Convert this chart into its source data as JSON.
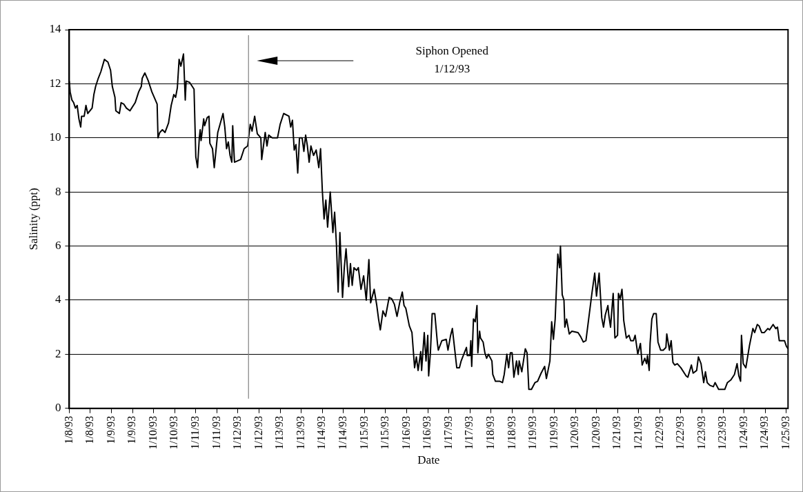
{
  "chart_data": {
    "type": "line",
    "xlabel": "Date",
    "ylabel": "Salinity (ppt)",
    "x": [
      "1993-01-08T00:00",
      "1993-01-08T00:30",
      "1993-01-08T01:30",
      "1993-01-08T02:30",
      "1993-01-08T03:30",
      "1993-01-08T04:30",
      "1993-01-08T05:30",
      "1993-01-08T06:30",
      "1993-01-08T07:00",
      "1993-01-08T08:30",
      "1993-01-08T09:30",
      "1993-01-08T10:30",
      "1993-01-08T13:00",
      "1993-01-08T14:00",
      "1993-01-08T15:00",
      "1993-01-08T16:30",
      "1993-01-08T18:00",
      "1993-01-08T20:00",
      "1993-01-08T22:00",
      "1993-01-08T23:30",
      "1993-01-09T00:30",
      "1993-01-09T02:00",
      "1993-01-09T02:30",
      "1993-01-09T04:30",
      "1993-01-09T05:30",
      "1993-01-09T07:00",
      "1993-01-09T08:30",
      "1993-01-09T10:30",
      "1993-01-09T13:30",
      "1993-01-09T15:30",
      "1993-01-09T17:00",
      "1993-01-09T17:30",
      "1993-01-09T19:00",
      "1993-01-09T21:00",
      "1993-01-09T23:00",
      "1993-01-10T01:00",
      "1993-01-10T02:00",
      "1993-01-10T02:30",
      "1993-01-10T03:30",
      "1993-01-10T05:00",
      "1993-01-10T06:30",
      "1993-01-10T08:30",
      "1993-01-10T10:00",
      "1993-01-10T11:30",
      "1993-01-10T12:30",
      "1993-01-10T13:30",
      "1993-01-10T14:30",
      "1993-01-10T15:30",
      "1993-01-10T17:00",
      "1993-01-10T18:00",
      "1993-01-10T18:30",
      "1993-01-10T20:30",
      "1993-01-10T22:30",
      "1993-01-10T23:00",
      "1993-01-11T00:00",
      "1993-01-11T01:00",
      "1993-01-11T02:00",
      "1993-01-11T02:30",
      "1993-01-11T03:00",
      "1993-01-11T04:30",
      "1993-01-11T05:00",
      "1993-01-11T06:30",
      "1993-01-11T07:30",
      "1993-01-11T08:00",
      "1993-01-11T09:30",
      "1993-01-11T10:30",
      "1993-01-11T12:30",
      "1993-01-11T15:30",
      "1993-01-11T16:30",
      "1993-01-11T17:30",
      "1993-01-11T18:30",
      "1993-01-11T19:30",
      "1993-01-11T20:30",
      "1993-01-11T21:00",
      "1993-01-11T22:00",
      "1993-01-12T01:30",
      "1993-01-12T03:30",
      "1993-01-12T05:30",
      "1993-01-12T07:00",
      "1993-01-12T08:00",
      "1993-01-12T09:30",
      "1993-01-12T11:00",
      "1993-01-12T13:00",
      "1993-01-12T13:30",
      "1993-01-12T14:30",
      "1993-01-12T15:30",
      "1993-01-12T16:30",
      "1993-01-12T17:30",
      "1993-01-12T19:30",
      "1993-01-12T22:30",
      "1993-01-13T00:00",
      "1993-01-13T02:00",
      "1993-01-13T05:00",
      "1993-01-13T06:00",
      "1993-01-13T07:00",
      "1993-01-13T08:00",
      "1993-01-13T09:00",
      "1993-01-13T10:00",
      "1993-01-13T11:00",
      "1993-01-13T12:30",
      "1993-01-13T13:30",
      "1993-01-13T14:30",
      "1993-01-13T15:30",
      "1993-01-13T16:30",
      "1993-01-13T17:30",
      "1993-01-13T19:00",
      "1993-01-13T20:30",
      "1993-01-13T22:00",
      "1993-01-13T23:00",
      "1993-01-14T00:00",
      "1993-01-14T01:00",
      "1993-01-14T02:00",
      "1993-01-14T03:00",
      "1993-01-14T04:30",
      "1993-01-14T06:00",
      "1993-01-14T07:00",
      "1993-01-14T08:00",
      "1993-01-14T09:00",
      "1993-01-14T10:00",
      "1993-01-14T11:30",
      "1993-01-14T12:30",
      "1993-01-14T13:30",
      "1993-01-14T15:00",
      "1993-01-14T16:00",
      "1993-01-14T17:00",
      "1993-01-14T18:00",
      "1993-01-14T19:30",
      "1993-01-14T20:30",
      "1993-01-14T22:00",
      "1993-01-14T23:30",
      "1993-01-15T01:00",
      "1993-01-15T02:30",
      "1993-01-15T03:30",
      "1993-01-15T05:30",
      "1993-01-15T07:00",
      "1993-01-15T08:00",
      "1993-01-15T09:00",
      "1993-01-15T10:30",
      "1993-01-15T12:00",
      "1993-01-15T14:00",
      "1993-01-15T15:30",
      "1993-01-15T17:00",
      "1993-01-15T18:30",
      "1993-01-15T20:00",
      "1993-01-15T21:30",
      "1993-01-15T22:30",
      "1993-01-15T23:30",
      "1993-01-16T01:30",
      "1993-01-16T03:00",
      "1993-01-16T04:30",
      "1993-01-16T05:30",
      "1993-01-16T06:30",
      "1993-01-16T08:00",
      "1993-01-16T08:30",
      "1993-01-16T10:00",
      "1993-01-16T11:00",
      "1993-01-16T12:00",
      "1993-01-16T12:30",
      "1993-01-16T13:30",
      "1993-01-16T14:30",
      "1993-01-16T16:00",
      "1993-01-16T17:30",
      "1993-01-16T18:00",
      "1993-01-16T20:00",
      "1993-01-16T22:30",
      "1993-01-16T23:30",
      "1993-01-17T01:00",
      "1993-01-17T02:00",
      "1993-01-17T04:30",
      "1993-01-17T06:00",
      "1993-01-17T07:00",
      "1993-01-17T10:00",
      "1993-01-17T10:30",
      "1993-01-17T12:00",
      "1993-01-17T12:30",
      "1993-01-17T13:00",
      "1993-01-17T14:00",
      "1993-01-17T15:00",
      "1993-01-17T16:00",
      "1993-01-17T16:30",
      "1993-01-17T17:30",
      "1993-01-17T18:00",
      "1993-01-17T19:30",
      "1993-01-17T20:30",
      "1993-01-17T21:30",
      "1993-01-17T22:30",
      "1993-01-18T00:30",
      "1993-01-18T01:00",
      "1993-01-18T02:30",
      "1993-01-18T05:00",
      "1993-01-18T06:30",
      "1993-01-18T07:30",
      "1993-01-18T09:00",
      "1993-01-18T10:00",
      "1993-01-18T11:00",
      "1993-01-18T12:00",
      "1993-01-18T13:00",
      "1993-01-18T14:30",
      "1993-01-18T15:30",
      "1993-01-18T16:00",
      "1993-01-18T17:30",
      "1993-01-18T19:30",
      "1993-01-18T20:30",
      "1993-01-18T21:30",
      "1993-01-18T23:00",
      "1993-01-19T01:00",
      "1993-01-19T02:30",
      "1993-01-19T04:30",
      "1993-01-19T06:30",
      "1993-01-19T07:30",
      "1993-01-19T09:30",
      "1993-01-19T10:30",
      "1993-01-19T11:30",
      "1993-01-19T12:30",
      "1993-01-19T14:00",
      "1993-01-19T15:00",
      "1993-01-19T15:30",
      "1993-01-19T16:30",
      "1993-01-19T17:30",
      "1993-01-19T18:00",
      "1993-01-19T19:00",
      "1993-01-19T20:30",
      "1993-01-19T22:00",
      "1993-01-20T01:30",
      "1993-01-20T03:00",
      "1993-01-20T04:30",
      "1993-01-20T06:00",
      "1993-01-20T09:30",
      "1993-01-20T11:00",
      "1993-01-20T12:00",
      "1993-01-20T13:30",
      "1993-01-20T15:00",
      "1993-01-20T16:00",
      "1993-01-20T17:00",
      "1993-01-20T18:30",
      "1993-01-20T19:00",
      "1993-01-20T20:00",
      "1993-01-20T21:30",
      "1993-01-20T22:30",
      "1993-01-21T00:00",
      "1993-01-21T00:30",
      "1993-01-21T01:30",
      "1993-01-21T02:30",
      "1993-01-21T03:00",
      "1993-01-21T03:30",
      "1993-01-21T05:00",
      "1993-01-21T06:30",
      "1993-01-21T07:30",
      "1993-01-21T09:00",
      "1993-01-21T10:00",
      "1993-01-21T11:30",
      "1993-01-21T13:00",
      "1993-01-21T14:00",
      "1993-01-21T15:30",
      "1993-01-21T16:30",
      "1993-01-21T17:00",
      "1993-01-21T18:00",
      "1993-01-21T18:30",
      "1993-01-21T19:30",
      "1993-01-21T20:30",
      "1993-01-21T22:00",
      "1993-01-21T23:00",
      "1993-01-22T00:30",
      "1993-01-22T02:00",
      "1993-01-22T03:30",
      "1993-01-22T04:00",
      "1993-01-22T05:30",
      "1993-01-22T06:30",
      "1993-01-22T07:30",
      "1993-01-22T08:30",
      "1993-01-22T10:00",
      "1993-01-22T12:00",
      "1993-01-22T15:00",
      "1993-01-22T16:00",
      "1993-01-22T18:00",
      "1993-01-22T19:00",
      "1993-01-22T21:00",
      "1993-01-22T22:00",
      "1993-01-22T23:30",
      "1993-01-23T01:00",
      "1993-01-23T02:00",
      "1993-01-23T03:00",
      "1993-01-23T04:30",
      "1993-01-23T06:30",
      "1993-01-23T07:30",
      "1993-01-23T09:30",
      "1993-01-23T13:00",
      "1993-01-23T14:30",
      "1993-01-23T16:30",
      "1993-01-23T18:30",
      "1993-01-23T20:00",
      "1993-01-23T21:00",
      "1993-01-23T22:00",
      "1993-01-23T22:30",
      "1993-01-23T23:30",
      "1993-01-24T01:00",
      "1993-01-24T03:00",
      "1993-01-24T05:00",
      "1993-01-24T06:00",
      "1993-01-24T07:30",
      "1993-01-24T08:30",
      "1993-01-24T10:00",
      "1993-01-24T11:30",
      "1993-01-24T13:30",
      "1993-01-24T14:30",
      "1993-01-24T16:30",
      "1993-01-24T18:00",
      "1993-01-24T19:00",
      "1993-01-24T20:00",
      "1993-01-24T21:30",
      "1993-01-24T23:00",
      "1993-01-25T00:00",
      "1993-01-25T01:00"
    ],
    "series": [
      {
        "color": "#000000",
        "values": [
          12.1,
          11.7,
          11.4,
          11.3,
          11.1,
          11.2,
          10.7,
          10.4,
          10.8,
          10.8,
          11.2,
          10.9,
          11.1,
          11.6,
          11.9,
          12.2,
          12.45,
          12.9,
          12.8,
          12.5,
          11.9,
          11.5,
          11.0,
          10.9,
          11.3,
          11.25,
          11.1,
          11.0,
          11.3,
          11.7,
          11.9,
          12.2,
          12.4,
          12.1,
          11.7,
          11.4,
          11.25,
          10.0,
          10.2,
          10.3,
          10.2,
          10.55,
          11.2,
          11.6,
          11.5,
          11.85,
          12.9,
          12.65,
          13.1,
          11.4,
          12.1,
          12.05,
          11.85,
          11.8,
          9.3,
          8.9,
          10.0,
          10.3,
          9.9,
          10.7,
          10.45,
          10.75,
          10.8,
          9.8,
          9.6,
          8.9,
          10.2,
          10.9,
          10.4,
          9.6,
          9.85,
          9.35,
          9.1,
          10.45,
          9.1,
          9.2,
          9.6,
          9.7,
          10.5,
          10.25,
          10.8,
          10.15,
          10.0,
          9.2,
          9.7,
          10.2,
          9.7,
          10.1,
          10.0,
          10.0,
          10.5,
          10.9,
          10.8,
          10.4,
          10.65,
          9.55,
          9.75,
          8.7,
          10.0,
          10.0,
          9.5,
          10.1,
          9.7,
          9.1,
          9.7,
          9.35,
          9.55,
          8.9,
          9.6,
          8.05,
          7.0,
          7.7,
          6.7,
          8.0,
          6.5,
          7.25,
          6.1,
          4.3,
          6.5,
          4.1,
          5.2,
          5.9,
          4.5,
          5.35,
          4.55,
          5.2,
          5.1,
          5.2,
          4.4,
          4.9,
          4.0,
          5.5,
          3.9,
          4.4,
          3.8,
          3.3,
          2.9,
          3.6,
          3.4,
          4.1,
          4.05,
          3.85,
          3.4,
          3.9,
          4.3,
          3.8,
          3.7,
          3.05,
          2.8,
          1.5,
          1.9,
          1.4,
          2.1,
          1.4,
          2.8,
          1.75,
          2.7,
          1.2,
          2.05,
          3.5,
          3.5,
          2.4,
          2.15,
          2.5,
          2.55,
          2.15,
          2.7,
          2.95,
          1.5,
          1.5,
          1.75,
          2.25,
          1.95,
          1.95,
          2.5,
          1.55,
          3.3,
          3.2,
          3.8,
          2.05,
          2.85,
          2.6,
          2.45,
          2.05,
          1.85,
          2.0,
          1.75,
          1.25,
          1.0,
          1.0,
          0.95,
          1.25,
          2.0,
          1.5,
          2.05,
          2.05,
          1.15,
          1.75,
          1.25,
          1.75,
          1.35,
          2.2,
          2.05,
          0.7,
          0.7,
          0.95,
          1.0,
          1.3,
          1.55,
          1.1,
          1.75,
          3.2,
          2.55,
          3.3,
          5.7,
          5.2,
          6.0,
          4.2,
          4.0,
          3.0,
          3.3,
          2.75,
          2.85,
          2.8,
          2.65,
          2.45,
          2.5,
          4.3,
          5.0,
          4.15,
          5.0,
          3.35,
          3.0,
          3.45,
          3.8,
          3.45,
          3.0,
          4.25,
          2.6,
          2.7,
          4.25,
          4.05,
          4.4,
          3.95,
          3.25,
          2.6,
          2.7,
          2.5,
          2.5,
          2.7,
          2.0,
          2.4,
          1.6,
          1.85,
          1.65,
          1.95,
          1.4,
          2.4,
          3.3,
          3.5,
          3.5,
          2.45,
          2.15,
          2.15,
          2.25,
          2.75,
          2.15,
          2.5,
          1.7,
          1.6,
          1.65,
          1.5,
          1.2,
          1.15,
          1.6,
          1.3,
          1.4,
          1.9,
          1.65,
          0.95,
          1.35,
          0.95,
          0.85,
          0.8,
          0.95,
          0.7,
          0.7,
          0.95,
          1.05,
          1.25,
          1.65,
          1.2,
          1.0,
          2.7,
          1.65,
          1.5,
          2.3,
          2.95,
          2.8,
          3.1,
          3.05,
          2.8,
          2.8,
          2.95,
          2.9,
          3.1,
          2.95,
          3.0,
          2.5,
          2.5,
          2.5,
          2.3,
          2.2
        ]
      }
    ],
    "xlim": [
      "1993-01-08T00:00",
      "1993-01-25T01:00"
    ],
    "xticks": [
      {
        "value": "1993-01-08T00:00",
        "label": "1/8/93"
      },
      {
        "value": "1993-01-08T12:00",
        "label": "1/8/93"
      },
      {
        "value": "1993-01-09T00:00",
        "label": "1/9/93"
      },
      {
        "value": "1993-01-09T12:00",
        "label": "1/9/93"
      },
      {
        "value": "1993-01-10T00:00",
        "label": "1/10/93"
      },
      {
        "value": "1993-01-10T12:00",
        "label": "1/10/93"
      },
      {
        "value": "1993-01-11T00:00",
        "label": "1/11/93"
      },
      {
        "value": "1993-01-11T12:00",
        "label": "1/11/93"
      },
      {
        "value": "1993-01-12T00:00",
        "label": "1/12/93"
      },
      {
        "value": "1993-01-12T12:00",
        "label": "1/12/93"
      },
      {
        "value": "1993-01-13T00:00",
        "label": "1/13/93"
      },
      {
        "value": "1993-01-13T12:00",
        "label": "1/13/93"
      },
      {
        "value": "1993-01-14T00:00",
        "label": "1/14/93"
      },
      {
        "value": "1993-01-14T12:00",
        "label": "1/14/93"
      },
      {
        "value": "1993-01-15T00:00",
        "label": "1/15/93"
      },
      {
        "value": "1993-01-15T12:00",
        "label": "1/15/93"
      },
      {
        "value": "1993-01-16T00:00",
        "label": "1/16/93"
      },
      {
        "value": "1993-01-16T12:00",
        "label": "1/16/93"
      },
      {
        "value": "1993-01-17T00:00",
        "label": "1/17/93"
      },
      {
        "value": "1993-01-17T12:00",
        "label": "1/17/93"
      },
      {
        "value": "1993-01-18T00:00",
        "label": "1/18/93"
      },
      {
        "value": "1993-01-18T12:00",
        "label": "1/18/93"
      },
      {
        "value": "1993-01-19T00:00",
        "label": "1/19/93"
      },
      {
        "value": "1993-01-19T12:00",
        "label": "1/19/93"
      },
      {
        "value": "1993-01-20T00:00",
        "label": "1/20/93"
      },
      {
        "value": "1993-01-20T12:00",
        "label": "1/20/93"
      },
      {
        "value": "1993-01-21T00:00",
        "label": "1/21/93"
      },
      {
        "value": "1993-01-21T12:00",
        "label": "1/21/93"
      },
      {
        "value": "1993-01-22T00:00",
        "label": "1/22/93"
      },
      {
        "value": "1993-01-22T12:00",
        "label": "1/22/93"
      },
      {
        "value": "1993-01-23T00:00",
        "label": "1/23/93"
      },
      {
        "value": "1993-01-23T12:00",
        "label": "1/23/93"
      },
      {
        "value": "1993-01-24T00:00",
        "label": "1/24/93"
      },
      {
        "value": "1993-01-24T12:00",
        "label": "1/24/93"
      },
      {
        "value": "1993-01-25T00:00",
        "label": "1/25/93"
      }
    ],
    "ylim": [
      0,
      14
    ],
    "yticks": [
      0,
      2,
      4,
      6,
      8,
      10,
      12,
      14
    ],
    "grid": "y",
    "legend": false,
    "marker": "none",
    "line_style": "solid",
    "annotations": [
      "Siphon Opened\n1/12/93"
    ],
    "ref_lines": [
      {
        "axis": "x",
        "value": "1993-01-12T06:00",
        "color": "#808080"
      }
    ]
  }
}
